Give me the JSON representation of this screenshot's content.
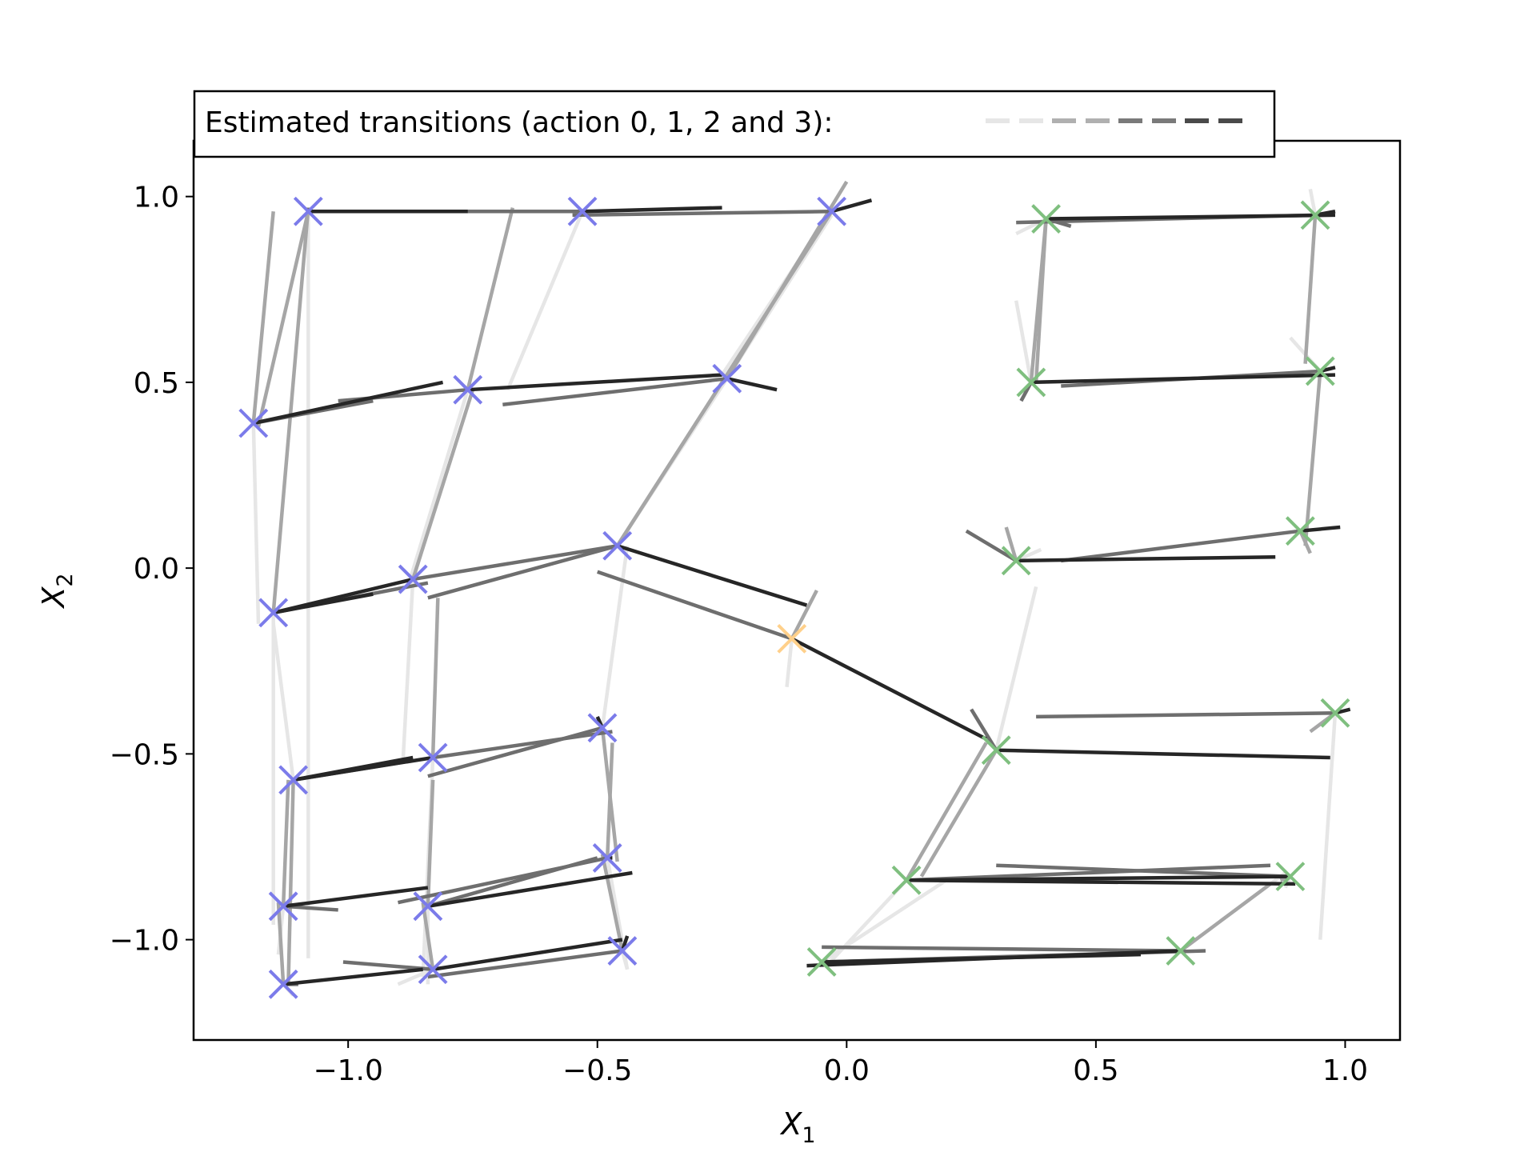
{
  "chart_data": {
    "type": "scatter",
    "title": "",
    "xlabel": "X",
    "xlabel_sub": "1",
    "ylabel": "X",
    "ylabel_sub": "2",
    "xlim": [
      -1.31,
      1.11
    ],
    "ylim": [
      -1.27,
      1.15
    ],
    "xticks": [
      {
        "value": -1.0,
        "label": "−1.0"
      },
      {
        "value": -0.5,
        "label": "−0.5"
      },
      {
        "value": 0.0,
        "label": "0.0"
      },
      {
        "value": 0.5,
        "label": "0.5"
      },
      {
        "value": 1.0,
        "label": "1.0"
      }
    ],
    "yticks": [
      {
        "value": 1.0,
        "label": "1.0"
      },
      {
        "value": 0.5,
        "label": "0.5"
      },
      {
        "value": 0.0,
        "label": "0.0"
      },
      {
        "value": -0.5,
        "label": "−0.5"
      },
      {
        "value": -1.0,
        "label": "−1.0"
      }
    ],
    "grid": false,
    "legend": {
      "placement": "top-left",
      "text": "Estimated transitions (action 0, 1, 2 and 3):",
      "swatch_colors": [
        "#e6e6e6",
        "#b0b0b0",
        "#7a7a7a",
        "#4a4a4a"
      ]
    },
    "action_colors": [
      "#e6e6e6",
      "#a6a6a6",
      "#6e6e6e",
      "#262626"
    ],
    "marker_colors": {
      "blue": "#7b7bea",
      "green": "#7fbf7f",
      "orange": "#ffd08a"
    },
    "points": [
      {
        "x": -1.08,
        "y": 0.96,
        "c": "blue",
        "t": [
          [
            -1.08,
            -1.05
          ],
          [
            -1.18,
            0.38
          ],
          [
            -1.08,
            0.97
          ],
          [
            -0.76,
            0.96
          ]
        ]
      },
      {
        "x": -0.53,
        "y": 0.96,
        "c": "blue",
        "t": [
          [
            -0.68,
            0.48
          ],
          [
            -0.66,
            0.96
          ],
          [
            -1.08,
            0.96
          ],
          [
            -0.25,
            0.97
          ]
        ]
      },
      {
        "x": -0.03,
        "y": 0.96,
        "c": "blue",
        "t": [
          [
            -0.25,
            0.52
          ],
          [
            -0.46,
            0.06
          ],
          [
            -0.55,
            0.95
          ],
          [
            0.05,
            0.99
          ]
        ]
      },
      {
        "x": -1.19,
        "y": 0.39,
        "c": "blue",
        "t": [
          [
            -1.18,
            -0.15
          ],
          [
            -1.15,
            0.96
          ],
          [
            -0.95,
            0.45
          ],
          [
            -0.81,
            0.5
          ]
        ]
      },
      {
        "x": -0.76,
        "y": 0.48,
        "c": "blue",
        "t": [
          [
            -0.88,
            -0.05
          ],
          [
            -0.67,
            0.97
          ],
          [
            -1.02,
            0.45
          ],
          [
            -0.25,
            0.52
          ]
        ]
      },
      {
        "x": -0.24,
        "y": 0.51,
        "c": "blue",
        "t": [
          [
            -0.03,
            0.95
          ],
          [
            0.0,
            1.04
          ],
          [
            -0.69,
            0.44
          ],
          [
            -0.14,
            0.48
          ]
        ]
      },
      {
        "x": -1.15,
        "y": -0.12,
        "c": "blue",
        "t": [
          [
            -1.15,
            -0.96
          ],
          [
            -1.08,
            0.97
          ],
          [
            -0.84,
            -0.04
          ],
          [
            -0.95,
            -0.07
          ]
        ]
      },
      {
        "x": -0.87,
        "y": -0.03,
        "c": "blue",
        "t": [
          [
            -0.89,
            -0.52
          ],
          [
            -0.75,
            0.48
          ],
          [
            -0.46,
            0.06
          ],
          [
            -1.15,
            -0.12
          ]
        ]
      },
      {
        "x": -0.46,
        "y": 0.06,
        "c": "blue",
        "t": [
          [
            -0.24,
            0.51
          ],
          [
            -0.03,
            0.96
          ],
          [
            -0.84,
            -0.08
          ],
          [
            -0.08,
            -0.1
          ]
        ]
      },
      {
        "x": -1.11,
        "y": -0.57,
        "c": "blue",
        "t": [
          [
            -1.15,
            -0.15
          ],
          [
            -1.12,
            -1.12
          ],
          [
            -0.88,
            -0.52
          ],
          [
            -0.87,
            -0.51
          ]
        ]
      },
      {
        "x": -0.83,
        "y": -0.51,
        "c": "blue",
        "t": [
          [
            -0.85,
            -1.1
          ],
          [
            -0.82,
            -0.08
          ],
          [
            -0.47,
            -0.44
          ],
          [
            -1.11,
            -0.57
          ]
        ]
      },
      {
        "x": -0.49,
        "y": -0.43,
        "c": "blue",
        "t": [
          [
            -0.44,
            0.06
          ],
          [
            -0.46,
            -0.79
          ],
          [
            -0.84,
            -0.56
          ],
          [
            -0.5,
            -0.4
          ]
        ]
      },
      {
        "x": -1.13,
        "y": -0.91,
        "c": "blue",
        "t": [
          [
            -1.14,
            -1.04
          ],
          [
            -1.12,
            -0.57
          ],
          [
            -1.02,
            -0.92
          ],
          [
            -0.84,
            -0.86
          ]
        ]
      },
      {
        "x": -0.84,
        "y": -0.91,
        "c": "blue",
        "t": [
          [
            -0.84,
            -1.12
          ],
          [
            -0.83,
            -0.57
          ],
          [
            -0.5,
            -0.78
          ],
          [
            -0.43,
            -0.82
          ]
        ]
      },
      {
        "x": -0.48,
        "y": -0.78,
        "c": "blue",
        "t": [
          [
            -0.44,
            -1.08
          ],
          [
            -0.47,
            -0.47
          ],
          [
            -0.9,
            -0.9
          ],
          [
            -0.47,
            -0.78
          ]
        ]
      },
      {
        "x": -1.13,
        "y": -1.12,
        "c": "blue",
        "t": [
          [
            -1.11,
            -1.15
          ],
          [
            -1.14,
            -0.9
          ],
          [
            -1.1,
            -1.12
          ],
          [
            -0.85,
            -1.08
          ]
        ]
      },
      {
        "x": -0.83,
        "y": -1.08,
        "c": "blue",
        "t": [
          [
            -0.9,
            -1.12
          ],
          [
            -0.85,
            -0.9
          ],
          [
            -1.01,
            -1.06
          ],
          [
            -0.45,
            -1.0
          ]
        ]
      },
      {
        "x": -0.45,
        "y": -1.03,
        "c": "blue",
        "t": [
          [
            -0.44,
            -1.08
          ],
          [
            -0.49,
            -0.77
          ],
          [
            -0.84,
            -1.1
          ],
          [
            -0.44,
            -0.99
          ]
        ]
      },
      {
        "x": -0.11,
        "y": -0.19,
        "c": "orange",
        "t": [
          [
            -0.12,
            -0.32
          ],
          [
            -0.06,
            -0.06
          ],
          [
            -0.5,
            -0.01
          ],
          [
            0.28,
            -0.46
          ]
        ]
      },
      {
        "x": 0.4,
        "y": 0.94,
        "c": "green",
        "t": [
          [
            0.34,
            0.9
          ],
          [
            0.38,
            0.5
          ],
          [
            0.45,
            0.92
          ],
          [
            0.98,
            0.95
          ]
        ]
      },
      {
        "x": 0.94,
        "y": 0.95,
        "c": "green",
        "t": [
          [
            0.93,
            1.02
          ],
          [
            0.92,
            0.55
          ],
          [
            0.34,
            0.93
          ],
          [
            0.98,
            0.96
          ]
        ]
      },
      {
        "x": 0.37,
        "y": 0.5,
        "c": "green",
        "t": [
          [
            0.34,
            0.72
          ],
          [
            0.4,
            0.94
          ],
          [
            0.35,
            0.45
          ],
          [
            0.98,
            0.52
          ]
        ]
      },
      {
        "x": 0.95,
        "y": 0.53,
        "c": "green",
        "t": [
          [
            0.89,
            0.62
          ],
          [
            0.92,
            0.06
          ],
          [
            0.43,
            0.49
          ],
          [
            0.98,
            0.54
          ]
        ]
      },
      {
        "x": 0.34,
        "y": 0.02,
        "c": "green",
        "t": [
          [
            0.39,
            0.05
          ],
          [
            0.32,
            0.11
          ],
          [
            0.24,
            0.1
          ],
          [
            0.86,
            0.03
          ]
        ]
      },
      {
        "x": 0.91,
        "y": 0.1,
        "c": "green",
        "t": [
          [
            0.92,
            0.08
          ],
          [
            0.93,
            0.04
          ],
          [
            0.43,
            0.02
          ],
          [
            0.99,
            0.11
          ]
        ]
      },
      {
        "x": 0.3,
        "y": -0.49,
        "c": "green",
        "t": [
          [
            0.38,
            -0.05
          ],
          [
            0.15,
            -0.83
          ],
          [
            0.25,
            -0.38
          ],
          [
            0.97,
            -0.51
          ]
        ]
      },
      {
        "x": 0.98,
        "y": -0.39,
        "c": "green",
        "t": [
          [
            0.95,
            -1.0
          ],
          [
            0.93,
            -0.44
          ],
          [
            0.38,
            -0.4
          ],
          [
            1.01,
            -0.38
          ]
        ]
      },
      {
        "x": 0.12,
        "y": -0.84,
        "c": "green",
        "t": [
          [
            -0.04,
            -1.07
          ],
          [
            0.28,
            -0.47
          ],
          [
            0.85,
            -0.8
          ],
          [
            0.9,
            -0.85
          ]
        ]
      },
      {
        "x": 0.89,
        "y": -0.83,
        "c": "green",
        "t": [
          [
            0.88,
            -0.86
          ],
          [
            0.87,
            -0.84
          ],
          [
            0.3,
            -0.8
          ],
          [
            0.13,
            -0.84
          ]
        ]
      },
      {
        "x": -0.05,
        "y": -1.06,
        "c": "green",
        "t": [
          [
            0.2,
            -0.84
          ],
          [
            -0.04,
            -1.05
          ],
          [
            0.72,
            -1.03
          ],
          [
            0.59,
            -1.04
          ]
        ]
      },
      {
        "x": 0.67,
        "y": -1.03,
        "c": "green",
        "t": [
          [
            0.88,
            -0.82
          ],
          [
            0.85,
            -0.85
          ],
          [
            -0.05,
            -1.02
          ],
          [
            -0.08,
            -1.07
          ]
        ]
      }
    ]
  }
}
